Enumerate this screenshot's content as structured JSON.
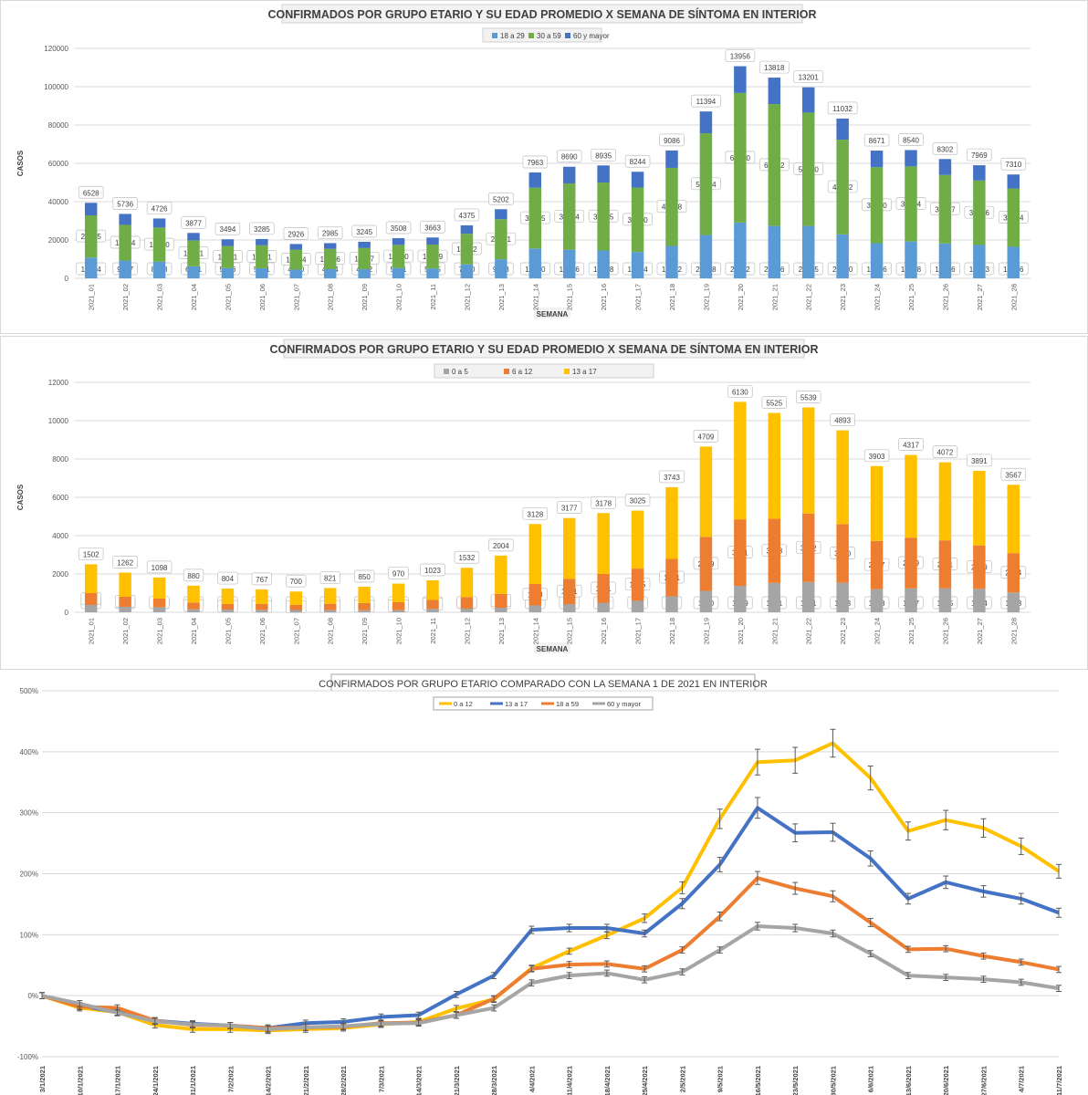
{
  "chart_data": [
    {
      "type": "bar",
      "stacked": true,
      "title": "CONFIRMADOS POR GRUPO ETARIO Y SU EDAD PROMEDIO X SEMANA DE SÍNTOMA EN INTERIOR",
      "xlabel": "SEMANA",
      "ylabel": "CASOS",
      "ylim": [
        0,
        120000
      ],
      "yticks": [
        0,
        20000,
        40000,
        60000,
        80000,
        100000,
        120000
      ],
      "legend_position": "top",
      "grid": true,
      "categories": [
        "2021_01",
        "2021_02",
        "2021_03",
        "2021_04",
        "2021_05",
        "2021_06",
        "2021_07",
        "2021_08",
        "2021_09",
        "2021_10",
        "2021_11",
        "2021_12",
        "2021_13",
        "2021_14",
        "2021_15",
        "2021_16",
        "2021_17",
        "2021_18",
        "2021_19",
        "2021_20",
        "2021_21",
        "2021_22",
        "2021_23",
        "2021_24",
        "2021_25",
        "2021_26",
        "2021_27",
        "2021_28"
      ],
      "series": [
        {
          "name": "18 a 29",
          "color": "#5b9bd5",
          "values": [
            10824,
            9267,
            8628,
            6261,
            5356,
            5271,
            4570,
            4844,
            4732,
            5381,
            5145,
            7220,
            9933,
            15550,
            14916,
            14518,
            13734,
            16902,
            22588,
            29112,
            27316,
            27335,
            22930,
            18326,
            19218,
            18186,
            17363,
            16456
          ]
        },
        {
          "name": "30 a 59",
          "color": "#70ad47",
          "values": [
            22035,
            18614,
            17870,
            13541,
            11521,
            11951,
            10404,
            10526,
            11077,
            12050,
            12489,
            16052,
            20921,
            31715,
            34624,
            35455,
            33630,
            40728,
            53094,
            67620,
            63602,
            59140,
            49422,
            39650,
            39164,
            35757,
            33676,
            30414
          ]
        },
        {
          "name": "60 y mayor",
          "color": "#4472c4",
          "values": [
            6528,
            5736,
            4726,
            3877,
            3494,
            3285,
            2926,
            2985,
            3245,
            3508,
            3663,
            4375,
            5202,
            7963,
            8690,
            8935,
            8244,
            9086,
            11394,
            13956,
            13818,
            13201,
            11032,
            8671,
            8540,
            8302,
            7969,
            7310
          ]
        }
      ]
    },
    {
      "type": "bar",
      "stacked": true,
      "title": "CONFIRMADOS POR GRUPO ETARIO Y SU EDAD PROMEDIO X SEMANA DE SÍNTOMA EN INTERIOR",
      "xlabel": "SEMANA",
      "ylabel": "CASOS",
      "ylim": [
        0,
        12000
      ],
      "yticks": [
        0,
        2000,
        4000,
        6000,
        8000,
        10000,
        12000
      ],
      "legend_position": "top",
      "grid": true,
      "categories": [
        "2021_01",
        "2021_02",
        "2021_03",
        "2021_04",
        "2021_05",
        "2021_06",
        "2021_07",
        "2021_08",
        "2021_09",
        "2021_10",
        "2021_11",
        "2021_12",
        "2021_13",
        "2021_14",
        "2021_15",
        "2021_16",
        "2021_17",
        "2021_18",
        "2021_19",
        "2021_20",
        "2021_21",
        "2021_22",
        "2021_23",
        "2021_24",
        "2021_25",
        "2021_26",
        "2021_27",
        "2021_28"
      ],
      "series": [
        {
          "name": "0 a 5",
          "color": "#a5a5a5",
          "values": [
            386,
            286,
            267,
            157,
            137,
            127,
            122,
            111,
            108,
            107,
            172,
            189,
            239,
            359,
            423,
            489,
            605,
            833,
            1120,
            1379,
            1531,
            1581,
            1543,
            1208,
            1247,
            1245,
            1224,
            1033
          ]
        },
        {
          "name": "6 a 12",
          "color": "#ed7d31",
          "values": [
            616,
            524,
            449,
            351,
            295,
            304,
            262,
            333,
            374,
            420,
            471,
            602,
            717,
            1118,
            1321,
            1511,
            1675,
            1951,
            2819,
            3471,
            3348,
            3572,
            3060,
            2517,
            2649,
            2511,
            2269,
            2054
          ]
        },
        {
          "name": "13 a 17",
          "color": "#ffc000",
          "values": [
            1502,
            1262,
            1098,
            880,
            804,
            767,
            700,
            821,
            850,
            970,
            1023,
            1532,
            2004,
            3128,
            3177,
            3178,
            3025,
            3743,
            4709,
            6130,
            5525,
            5539,
            4893,
            3903,
            4317,
            4072,
            3891,
            3567
          ]
        }
      ]
    },
    {
      "type": "line",
      "title": "CONFIRMADOS POR GRUPO ETARIO COMPARADO CON LA SEMANA 1 DE 2021 EN INTERIOR",
      "ylim": [
        -100,
        500
      ],
      "yticks": [
        -100,
        0,
        100,
        200,
        300,
        400,
        500
      ],
      "ytick_format": "percent",
      "legend_position": "top",
      "grid": true,
      "error_bars": true,
      "x": [
        "3/1/2021",
        "10/1/2021",
        "17/1/2021",
        "24/1/2021",
        "31/1/2021",
        "7/2/2021",
        "14/2/2021",
        "21/2/2021",
        "28/2/2021",
        "7/3/2021",
        "14/3/2021",
        "21/3/2021",
        "28/3/2021",
        "4/4/2021",
        "11/4/2021",
        "18/4/2021",
        "25/4/2021",
        "2/5/2021",
        "9/5/2021",
        "16/5/2021",
        "23/5/2021",
        "30/5/2021",
        "6/6/2021",
        "13/6/2021",
        "20/6/2021",
        "27/6/2021",
        "4/7/2021",
        "11/7/2021"
      ],
      "series": [
        {
          "name": "0 a 12",
          "color": "#ffc000",
          "values": [
            0,
            -20,
            -27,
            -48,
            -55,
            -55,
            -57,
            -55,
            -53,
            -47,
            -43,
            -21,
            -6,
            45,
            73,
            99,
            127,
            177,
            290,
            383,
            386,
            414,
            357,
            270,
            288,
            275,
            245,
            204
          ]
        },
        {
          "name": "13 a 17",
          "color": "#4472c4",
          "values": [
            0,
            -16,
            -27,
            -41,
            -46,
            -49,
            -53,
            -45,
            -43,
            -35,
            -32,
            2,
            33,
            108,
            111,
            111,
            102,
            151,
            215,
            308,
            267,
            268,
            225,
            159,
            186,
            171,
            159,
            136
          ]
        },
        {
          "name": "18 a 59",
          "color": "#ed7d31",
          "values": [
            0,
            -18,
            -20,
            -41,
            -48,
            -49,
            -53,
            -52,
            -51,
            -45,
            -44,
            -32,
            -5,
            44,
            51,
            52,
            44,
            75,
            130,
            193,
            176,
            163,
            120,
            76,
            77,
            65,
            55,
            43
          ]
        },
        {
          "name": "60 y mayor",
          "color": "#a5a5a5",
          "values": [
            0,
            -13,
            -28,
            -42,
            -47,
            -49,
            -55,
            -52,
            -50,
            -46,
            -45,
            -32,
            -20,
            21,
            33,
            37,
            26,
            39,
            75,
            114,
            111,
            102,
            69,
            33,
            30,
            27,
            22,
            12
          ]
        }
      ]
    }
  ]
}
